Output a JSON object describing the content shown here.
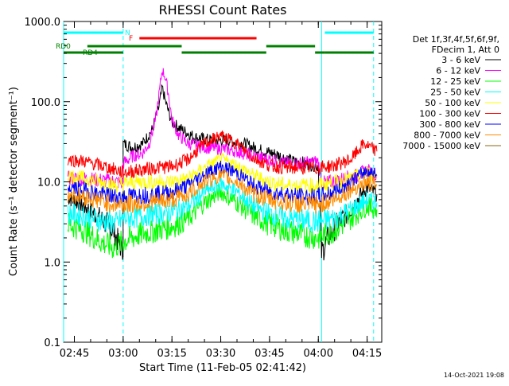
{
  "chart_data": {
    "type": "line",
    "title": "RHESSI Count Rates",
    "xlabel": "Start Time (11-Feb-05 02:41:42)",
    "ylabel": "Count Rate (s⁻¹ detector segment⁻¹)",
    "yscale": "log",
    "ylim": [
      0.1,
      1000
    ],
    "xlim": [
      "02:41:42",
      "04:19:30"
    ],
    "grid": false,
    "legend_placement": "right",
    "footer": "14-Oct-2021 19:08",
    "x_ticks": [
      "02:45",
      "03:00",
      "03:15",
      "03:30",
      "03:45",
      "04:00",
      "04:15"
    ],
    "y_ticks": [
      "0.1",
      "1.0",
      "10.0",
      "100.0",
      "1000.0"
    ],
    "legend_header": [
      "Det 1f,3f,4f,5f,6f,9f,",
      "FDecim 1, Att 0"
    ],
    "series": [
      {
        "name": "3 - 6 keV",
        "color": "#000000",
        "points": [
          [
            "02:43",
            6.5
          ],
          [
            "02:48",
            5.0
          ],
          [
            "02:53",
            3.5
          ],
          [
            "02:57",
            2.5
          ],
          [
            "02:59",
            1.6
          ],
          [
            "03:00",
            1.5
          ],
          [
            "03:00",
            30
          ],
          [
            "03:03",
            27
          ],
          [
            "03:06",
            30
          ],
          [
            "03:09",
            45
          ],
          [
            "03:11",
            85
          ],
          [
            "03:12",
            150
          ],
          [
            "03:13",
            100
          ],
          [
            "03:15",
            55
          ],
          [
            "03:18",
            45
          ],
          [
            "03:22",
            36
          ],
          [
            "03:27",
            33
          ],
          [
            "03:32",
            33
          ],
          [
            "03:37",
            30
          ],
          [
            "03:42",
            25
          ],
          [
            "03:47",
            22
          ],
          [
            "03:52",
            18
          ],
          [
            "03:56",
            17
          ],
          [
            "04:00",
            16
          ],
          [
            "04:01",
            1.3
          ],
          [
            "04:03",
            2.0
          ],
          [
            "04:06",
            3.0
          ],
          [
            "04:09",
            4.0
          ],
          [
            "04:12",
            6.0
          ],
          [
            "04:15",
            8.5
          ],
          [
            "04:18",
            7.0
          ]
        ]
      },
      {
        "name": "6 - 12 keV",
        "color": "#ff00ff",
        "points": [
          [
            "02:43",
            11
          ],
          [
            "02:48",
            11
          ],
          [
            "02:53",
            10.5
          ],
          [
            "02:58",
            10
          ],
          [
            "03:00",
            9.5
          ],
          [
            "03:00",
            17
          ],
          [
            "03:03",
            21
          ],
          [
            "03:06",
            23
          ],
          [
            "03:08",
            30
          ],
          [
            "03:10",
            60
          ],
          [
            "03:11",
            120
          ],
          [
            "03:12",
            250
          ],
          [
            "03:13",
            200
          ],
          [
            "03:14",
            120
          ],
          [
            "03:15",
            60
          ],
          [
            "03:17",
            38
          ],
          [
            "03:20",
            30
          ],
          [
            "03:25",
            27
          ],
          [
            "03:30",
            26
          ],
          [
            "03:35",
            24
          ],
          [
            "03:40",
            21
          ],
          [
            "03:45",
            19
          ],
          [
            "03:50",
            17
          ],
          [
            "03:55",
            17
          ],
          [
            "04:00",
            18
          ],
          [
            "04:01",
            9.5
          ],
          [
            "04:04",
            10
          ],
          [
            "04:08",
            11
          ],
          [
            "04:12",
            12
          ],
          [
            "04:15",
            14
          ],
          [
            "04:18",
            12
          ]
        ]
      },
      {
        "name": "12 - 25 keV",
        "color": "#00ff00",
        "points": [
          [
            "02:43",
            3
          ],
          [
            "02:48",
            2.5
          ],
          [
            "02:53",
            1.8
          ],
          [
            "02:57",
            1.5
          ],
          [
            "03:00",
            1.8
          ],
          [
            "03:05",
            2.2
          ],
          [
            "03:10",
            2.5
          ],
          [
            "03:15",
            2.8
          ],
          [
            "03:20",
            3.5
          ],
          [
            "03:25",
            5.5
          ],
          [
            "03:30",
            7.5
          ],
          [
            "03:35",
            5.5
          ],
          [
            "03:40",
            3.8
          ],
          [
            "03:45",
            3
          ],
          [
            "03:50",
            2.5
          ],
          [
            "03:55",
            2.2
          ],
          [
            "04:00",
            2
          ],
          [
            "04:05",
            2.5
          ],
          [
            "04:10",
            3.5
          ],
          [
            "04:15",
            5
          ],
          [
            "04:18",
            4.5
          ]
        ]
      },
      {
        "name": "25 - 50 keV",
        "color": "#00ffff",
        "points": [
          [
            "02:43",
            4
          ],
          [
            "02:48",
            3.8
          ],
          [
            "02:53",
            3.3
          ],
          [
            "02:58",
            3
          ],
          [
            "03:00",
            3.5
          ],
          [
            "03:05",
            3.7
          ],
          [
            "03:10",
            4
          ],
          [
            "03:15",
            4.2
          ],
          [
            "03:20",
            5
          ],
          [
            "03:25",
            7.5
          ],
          [
            "03:30",
            9.5
          ],
          [
            "03:35",
            7.5
          ],
          [
            "03:40",
            5
          ],
          [
            "03:45",
            4
          ],
          [
            "03:50",
            3.5
          ],
          [
            "03:55",
            3.3
          ],
          [
            "04:00",
            3.2
          ],
          [
            "04:05",
            3.5
          ],
          [
            "04:10",
            4.5
          ],
          [
            "04:15",
            6
          ],
          [
            "04:18",
            5.5
          ]
        ]
      },
      {
        "name": "50 - 100 keV",
        "color": "#ffff00",
        "points": [
          [
            "02:43",
            12
          ],
          [
            "02:48",
            11
          ],
          [
            "02:53",
            10
          ],
          [
            "02:58",
            9
          ],
          [
            "03:00",
            9.5
          ],
          [
            "03:05",
            10
          ],
          [
            "03:10",
            10
          ],
          [
            "03:15",
            10
          ],
          [
            "03:20",
            11
          ],
          [
            "03:25",
            15
          ],
          [
            "03:30",
            19
          ],
          [
            "03:35",
            16
          ],
          [
            "03:40",
            12
          ],
          [
            "03:45",
            10
          ],
          [
            "03:50",
            9
          ],
          [
            "03:55",
            9
          ],
          [
            "04:00",
            9
          ],
          [
            "04:05",
            10
          ],
          [
            "04:10",
            11
          ],
          [
            "04:15",
            13
          ],
          [
            "04:18",
            12
          ]
        ]
      },
      {
        "name": "100 - 300 keV",
        "color": "#ff0000",
        "points": [
          [
            "02:43",
            19
          ],
          [
            "02:48",
            18
          ],
          [
            "02:53",
            16
          ],
          [
            "02:58",
            14
          ],
          [
            "03:00",
            13
          ],
          [
            "03:05",
            14
          ],
          [
            "03:10",
            15
          ],
          [
            "03:15",
            15.5
          ],
          [
            "03:20",
            19
          ],
          [
            "03:25",
            30
          ],
          [
            "03:30",
            38
          ],
          [
            "03:35",
            30
          ],
          [
            "03:40",
            20
          ],
          [
            "03:45",
            16
          ],
          [
            "03:50",
            15
          ],
          [
            "03:55",
            15
          ],
          [
            "04:00",
            15
          ],
          [
            "04:05",
            16
          ],
          [
            "04:10",
            19
          ],
          [
            "04:14",
            30
          ],
          [
            "04:18",
            24
          ]
        ]
      },
      {
        "name": "300 - 800 keV",
        "color": "#0000ff",
        "points": [
          [
            "02:43",
            8.5
          ],
          [
            "02:48",
            8
          ],
          [
            "02:53",
            7
          ],
          [
            "02:58",
            6.5
          ],
          [
            "03:00",
            6.5
          ],
          [
            "03:05",
            6.8
          ],
          [
            "03:10",
            7
          ],
          [
            "03:15",
            7.5
          ],
          [
            "03:20",
            9
          ],
          [
            "03:25",
            12.5
          ],
          [
            "03:30",
            15.5
          ],
          [
            "03:35",
            13
          ],
          [
            "03:40",
            9
          ],
          [
            "03:45",
            7.5
          ],
          [
            "03:50",
            7
          ],
          [
            "03:55",
            6.5
          ],
          [
            "04:00",
            6.5
          ],
          [
            "04:05",
            7.5
          ],
          [
            "04:10",
            10
          ],
          [
            "04:15",
            14
          ],
          [
            "04:18",
            12
          ]
        ]
      },
      {
        "name": "800 - 7000 keV",
        "color": "#ff8c00",
        "points": [
          [
            "02:43",
            7
          ],
          [
            "02:48",
            6.5
          ],
          [
            "02:53",
            5.8
          ],
          [
            "02:58",
            5.2
          ],
          [
            "03:00",
            5.2
          ],
          [
            "03:05",
            5.4
          ],
          [
            "03:10",
            5.6
          ],
          [
            "03:15",
            6
          ],
          [
            "03:20",
            7
          ],
          [
            "03:25",
            10
          ],
          [
            "03:30",
            12
          ],
          [
            "03:35",
            10
          ],
          [
            "03:40",
            7
          ],
          [
            "03:45",
            6
          ],
          [
            "03:50",
            5.5
          ],
          [
            "03:55",
            5.2
          ],
          [
            "04:00",
            5.2
          ],
          [
            "04:05",
            6
          ],
          [
            "04:10",
            8
          ],
          [
            "04:15",
            10
          ],
          [
            "04:18",
            9
          ]
        ]
      },
      {
        "name": "7000 - 15000 keV",
        "color": "#8b6914",
        "points": []
      }
    ],
    "attenuator_bars": [
      {
        "label": "N",
        "color": "#00ffff",
        "segments": [
          [
            "02:41:42",
            "03:00"
          ],
          [
            "04:02",
            "04:17"
          ]
        ]
      },
      {
        "label": "F",
        "color": "#ff0000",
        "segments": [
          [
            "03:05",
            "03:41"
          ]
        ]
      },
      {
        "label": "RD0",
        "color": "#008000",
        "segments": [
          [
            "02:49",
            "03:18"
          ],
          [
            "03:44",
            "03:59"
          ]
        ]
      },
      {
        "label": "RD4",
        "color": "#008000",
        "segments": [
          [
            "02:41:42",
            "03:00"
          ],
          [
            "03:18",
            "03:44"
          ],
          [
            "03:59",
            "04:02"
          ],
          [
            "04:02",
            "04:17"
          ]
        ]
      }
    ],
    "vertical_markers": [
      {
        "time": "02:41:42",
        "style": "solid",
        "color": "#00ffff"
      },
      {
        "time": "03:00",
        "style": "dashed",
        "color": "#00ffff"
      },
      {
        "time": "04:01",
        "style": "solid",
        "color": "#00ffff"
      },
      {
        "time": "04:17",
        "style": "dashed",
        "color": "#00ffff"
      }
    ]
  }
}
